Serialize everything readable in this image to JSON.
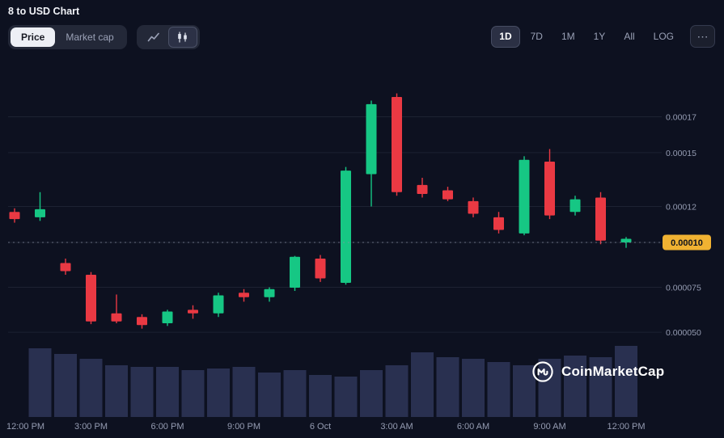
{
  "header": {
    "title": "8 to USD Chart"
  },
  "toolbar": {
    "view_toggle": [
      {
        "label": "Price",
        "active": true
      },
      {
        "label": "Market cap",
        "active": false
      }
    ],
    "chart_type_icons": [
      {
        "name": "line-chart-icon",
        "active": false
      },
      {
        "name": "candlestick-chart-icon",
        "active": true
      }
    ],
    "ranges": [
      {
        "label": "1D",
        "active": true
      },
      {
        "label": "7D",
        "active": false
      },
      {
        "label": "1M",
        "active": false
      },
      {
        "label": "1Y",
        "active": false
      },
      {
        "label": "All",
        "active": false
      },
      {
        "label": "LOG",
        "active": false
      }
    ],
    "more_label": "⋯"
  },
  "watermark": {
    "label": "CoinMarketCap"
  },
  "chart_data": {
    "type": "candlestick",
    "title": "8 to USD Chart",
    "timeframe": "1D",
    "x_labels": [
      "12:00 PM",
      "3:00 PM",
      "6:00 PM",
      "9:00 PM",
      "6 Oct",
      "3:00 AM",
      "6:00 AM",
      "9:00 AM",
      "12:00 PM"
    ],
    "x_label_candle_indices": [
      0,
      3,
      6,
      9,
      12,
      15,
      18,
      21,
      24
    ],
    "y_labels": [
      "0.00017",
      "0.00015",
      "0.00012",
      "0.00010",
      "0.000075",
      "0.000050"
    ],
    "y_label_values": [
      0.00017,
      0.00015,
      0.00012,
      0.0001,
      7.5e-05,
      5e-05
    ],
    "current_price": 0.0001,
    "current_price_label": "0.00010",
    "grid": true,
    "legend_position": "none",
    "candles_ohlcv": [
      [
        0.000117,
        0.000119,
        0.000111,
        0.000113,
        0
      ],
      [
        0.000114,
        0.000128,
        0.000112,
        0.0001185,
        85
      ],
      [
        8.85e-05,
        9.1e-05,
        8.2e-05,
        8.4e-05,
        78
      ],
      [
        8.2e-05,
        8.35e-05,
        5.45e-05,
        5.6e-05,
        72
      ],
      [
        6.05e-05,
        7.1e-05,
        5.5e-05,
        5.6e-05,
        64
      ],
      [
        5.85e-05,
        6e-05,
        5.2e-05,
        5.4e-05,
        62
      ],
      [
        5.5e-05,
        6.25e-05,
        5.35e-05,
        6.15e-05,
        62
      ],
      [
        6.25e-05,
        6.5e-05,
        5.75e-05,
        6.05e-05,
        58
      ],
      [
        6.05e-05,
        7.2e-05,
        5.85e-05,
        7.05e-05,
        60
      ],
      [
        7.2e-05,
        7.4e-05,
        6.7e-05,
        6.95e-05,
        62
      ],
      [
        6.95e-05,
        7.5e-05,
        6.7e-05,
        7.4e-05,
        55
      ],
      [
        7.48e-05,
        9.25e-05,
        7.3e-05,
        9.2e-05,
        58
      ],
      [
        9.1e-05,
        9.3e-05,
        7.8e-05,
        8e-05,
        52
      ],
      [
        7.75e-05,
        0.000142,
        7.65e-05,
        0.00014,
        50
      ],
      [
        0.000138,
        0.000179,
        0.00012,
        0.000177,
        58
      ],
      [
        0.000181,
        0.000183,
        0.000126,
        0.000128,
        64
      ],
      [
        0.000132,
        0.000136,
        0.000125,
        0.000127,
        80
      ],
      [
        0.000129,
        0.000131,
        0.000123,
        0.000124,
        74
      ],
      [
        0.000123,
        0.000125,
        0.000114,
        0.000116,
        72
      ],
      [
        0.000114,
        0.000117,
        0.000105,
        0.000107,
        68
      ],
      [
        0.000105,
        0.000148,
        0.000104,
        0.000146,
        64
      ],
      [
        0.000145,
        0.000152,
        0.000113,
        0.000115,
        72
      ],
      [
        0.000117,
        0.000126,
        0.000115,
        0.000124,
        76
      ],
      [
        0.000125,
        0.000128,
        9.9e-05,
        0.000101,
        74
      ],
      [
        0.0001,
        0.000103,
        9.7e-05,
        0.000102,
        88
      ]
    ],
    "colors": {
      "up": "#16c784",
      "down": "#ea3943",
      "volume": "#293050",
      "grid": "#1d2232",
      "axis_text": "#959cb2",
      "current_price_badge": "#f0b232",
      "current_price_badge_text": "#10131d",
      "current_price_line": "#8a90a5"
    }
  }
}
